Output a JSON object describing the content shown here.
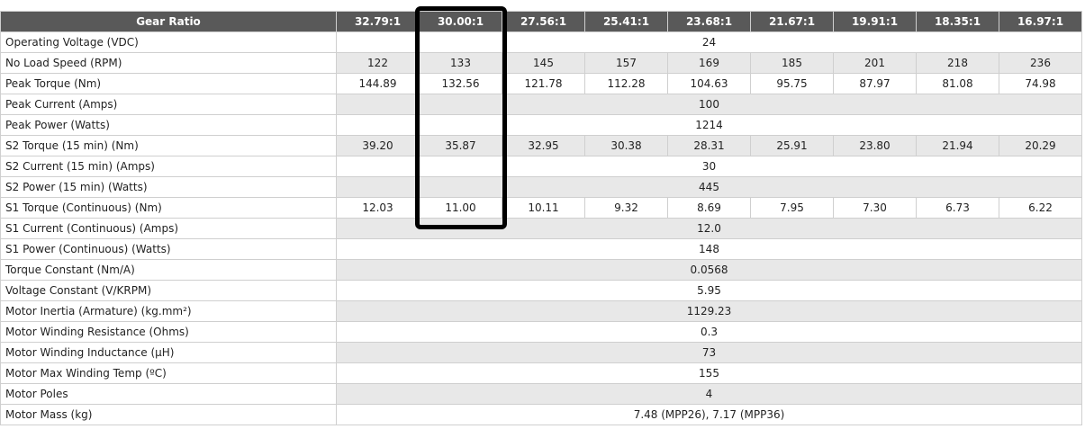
{
  "header": {
    "label": "Gear Ratio",
    "ratios": [
      "32.79:1",
      "30.00:1",
      "27.56:1",
      "25.41:1",
      "23.68:1",
      "21.67:1",
      "19.91:1",
      "18.35:1",
      "16.97:1"
    ]
  },
  "rows": [
    {
      "label": "Operating Voltage (VDC)",
      "shade": false,
      "span": "24"
    },
    {
      "label": "No Load Speed (RPM)",
      "shade": true,
      "values": [
        "122",
        "133",
        "145",
        "157",
        "169",
        "185",
        "201",
        "218",
        "236"
      ]
    },
    {
      "label": "Peak Torque (Nm)",
      "shade": false,
      "values": [
        "144.89",
        "132.56",
        "121.78",
        "112.28",
        "104.63",
        "95.75",
        "87.97",
        "81.08",
        "74.98"
      ]
    },
    {
      "label": "Peak Current (Amps)",
      "shade": true,
      "span": "100"
    },
    {
      "label": "Peak Power (Watts)",
      "shade": false,
      "span": "1214"
    },
    {
      "label": "S2 Torque (15 min) (Nm)",
      "shade": true,
      "values": [
        "39.20",
        "35.87",
        "32.95",
        "30.38",
        "28.31",
        "25.91",
        "23.80",
        "21.94",
        "20.29"
      ]
    },
    {
      "label": "S2 Current (15 min) (Amps)",
      "shade": false,
      "span": "30"
    },
    {
      "label": "S2 Power (15 min) (Watts)",
      "shade": true,
      "span": "445"
    },
    {
      "label": "S1 Torque (Continuous) (Nm)",
      "shade": false,
      "values": [
        "12.03",
        "11.00",
        "10.11",
        "9.32",
        "8.69",
        "7.95",
        "7.30",
        "6.73",
        "6.22"
      ]
    },
    {
      "label": "S1 Current (Continuous) (Amps)",
      "shade": true,
      "span": "12.0"
    },
    {
      "label": "S1 Power (Continuous) (Watts)",
      "shade": false,
      "span": "148"
    },
    {
      "label": "Torque Constant (Nm/A)",
      "shade": true,
      "span": "0.0568"
    },
    {
      "label": "Voltage Constant (V/KRPM)",
      "shade": false,
      "span": "5.95"
    },
    {
      "label": "Motor Inertia (Armature) (kg.mm²)",
      "shade": true,
      "span": "1129.23"
    },
    {
      "label": "Motor Winding Resistance (Ohms)",
      "shade": false,
      "span": "0.3"
    },
    {
      "label": "Motor Winding Inductance (µH)",
      "shade": true,
      "span": "73"
    },
    {
      "label": "Motor Max Winding Temp (ºC)",
      "shade": false,
      "span": "155"
    },
    {
      "label": "Motor Poles",
      "shade": true,
      "span": "4"
    },
    {
      "label": "Motor Mass (kg)",
      "shade": false,
      "span": "7.48 (MPP26), 7.17 (MPP36)"
    }
  ],
  "highlight": {
    "color": "#000000",
    "column": "30.00:1"
  }
}
